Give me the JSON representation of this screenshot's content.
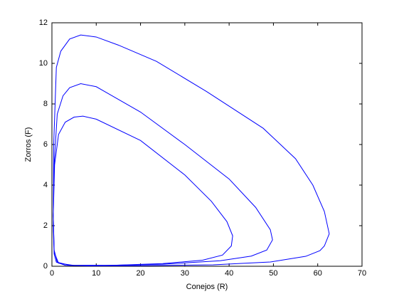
{
  "chart_data": {
    "type": "line",
    "xlabel": "Conejos (R)",
    "ylabel": "Zorros (F)",
    "xlim": [
      0,
      70
    ],
    "xticks": [
      0,
      10,
      20,
      30,
      40,
      50,
      60,
      70
    ],
    "ylim": [
      0,
      12
    ],
    "yticks": [
      0,
      2,
      4,
      6,
      8,
      10,
      12
    ],
    "series": [
      {
        "color": "#0000ff",
        "x": [
          0.3,
          0.4,
          1,
          2,
          4,
          6.5,
          10,
          15,
          23.6,
          35,
          47.7,
          55,
          58.9,
          61.5,
          62.6,
          61.5,
          60.5,
          57.3,
          49.3,
          36.4,
          20,
          8,
          3,
          1,
          0.5,
          0.3
        ],
        "values": [
          2,
          6,
          9.8,
          10.6,
          11.2,
          11.4,
          11.3,
          10.9,
          10.1,
          8.6,
          6.8,
          5.3,
          4.0,
          2.7,
          1.6,
          1.0,
          0.77,
          0.49,
          0.21,
          0.07,
          0.03,
          0.02,
          0.05,
          0.2,
          0.6,
          2
        ]
      },
      {
        "color": "#0000ff",
        "x": [
          0.3,
          0.5,
          1.2,
          2.5,
          4,
          6.5,
          10,
          20,
          30,
          40,
          46,
          49.3,
          49.8,
          48.5,
          45,
          38,
          25,
          12,
          4,
          1.2,
          0.5,
          0.3
        ],
        "values": [
          2.5,
          5,
          7.5,
          8.4,
          8.8,
          9.0,
          8.85,
          7.6,
          6.0,
          4.3,
          2.9,
          1.8,
          1.3,
          0.8,
          0.5,
          0.27,
          0.1,
          0.04,
          0.05,
          0.2,
          0.8,
          2.5
        ]
      },
      {
        "color": "#0000ff",
        "x": [
          0.3,
          0.6,
          1.5,
          3,
          5,
          7,
          10,
          20,
          30,
          36,
          39.5,
          40.8,
          40.5,
          38.5,
          34,
          25,
          14,
          5,
          1.5,
          0.5,
          0.3
        ],
        "values": [
          2.5,
          5,
          6.5,
          7.1,
          7.35,
          7.4,
          7.25,
          6.2,
          4.5,
          3.2,
          2.2,
          1.5,
          1.0,
          0.55,
          0.3,
          0.13,
          0.05,
          0.04,
          0.15,
          0.7,
          2.5
        ]
      }
    ]
  }
}
